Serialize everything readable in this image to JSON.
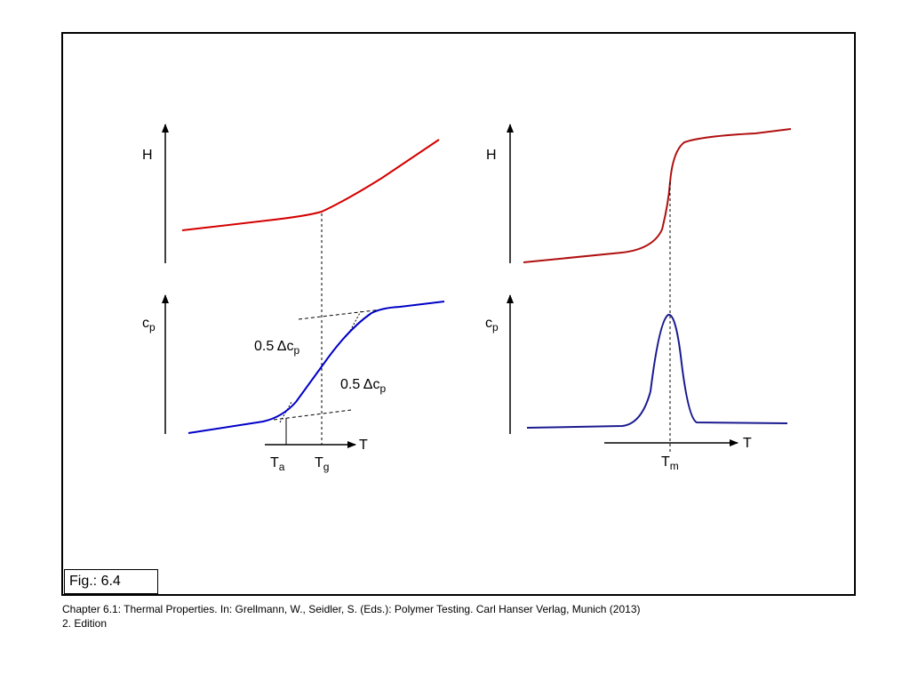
{
  "figure": {
    "label": "Fig.: 6.4",
    "caption_line1": "Chapter 6.1: Thermal Properties. In: Grellmann, W., Seidler, S. (Eds.): Polymer Testing. Carl Hanser Verlag, Munich (2013)",
    "caption_line2": "2. Edition"
  },
  "left_panel": {
    "top_axis_label": "H",
    "bottom_axis_label_main": "c",
    "bottom_axis_label_sub": "p",
    "x_axis_label": "T",
    "annotation_upper": {
      "main": "0.5 Δc",
      "sub": "p"
    },
    "annotation_lower": {
      "main": "0.5 Δc",
      "sub": "p"
    },
    "tick_a": {
      "main": "T",
      "sub": "a"
    },
    "tick_g": {
      "main": "T",
      "sub": "g"
    }
  },
  "right_panel": {
    "top_axis_label": "H",
    "bottom_axis_label_main": "c",
    "bottom_axis_label_sub": "p",
    "x_axis_label": "T",
    "tick_m": {
      "main": "T",
      "sub": "m"
    }
  },
  "colors": {
    "enthalpy_curve": "#d40000",
    "enthalpy_curve_right": "#b01010",
    "cp_curve": "#0000c8",
    "cp_curve_right": "#1a1a90",
    "axis": "#000000",
    "guide": "#000000"
  }
}
